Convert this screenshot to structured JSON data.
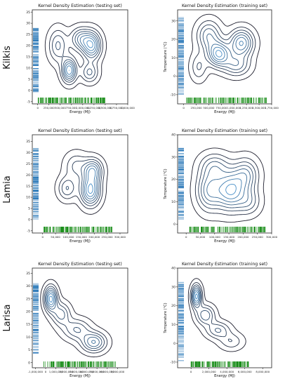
{
  "figure": {
    "rows": [
      {
        "label": "Kilkis"
      },
      {
        "label": "Lamia"
      },
      {
        "label": "Larisa"
      }
    ]
  },
  "chart_data": [
    {
      "type": "kde-contour",
      "row": "Kilkis",
      "title": "Kernel Density Estimation (testing set)",
      "xlabel": "Energy (MJ)",
      "ylabel": "",
      "xlim": [
        -120000,
        2000000
      ],
      "ylim": [
        -6,
        36
      ],
      "xticks": [
        0,
        250000,
        500000,
        750000,
        1000000,
        1250000,
        1500000,
        1750000,
        2000000
      ],
      "xtick_labels": [
        "0",
        "250,000",
        "500,000",
        "750,000",
        "1,000,000",
        "1,250,000",
        "1,500,000",
        "1,750,000",
        "2,000,000"
      ],
      "yticks": [
        -5,
        0,
        5,
        10,
        15,
        20,
        25,
        30,
        35
      ],
      "ytick_labels": [
        "-5",
        "0",
        "5",
        "10",
        "15",
        "20",
        "25",
        "30",
        "35"
      ],
      "rug_x_range": [
        0,
        1500000
      ],
      "rug_y_range": [
        -1,
        28
      ],
      "modes": [
        {
          "x": 700000,
          "y": 9,
          "sx": 110000,
          "sy": 3.6,
          "w": 1.0
        },
        {
          "x": 1200000,
          "y": 20,
          "sx": 140000,
          "sy": 4.2,
          "w": 0.95
        },
        {
          "x": 950000,
          "y": 23,
          "sx": 150000,
          "sy": 3.4,
          "w": 0.6
        },
        {
          "x": 450000,
          "y": 20,
          "sx": 140000,
          "sy": 5.0,
          "w": 0.5
        },
        {
          "x": 1150000,
          "y": 8,
          "sx": 130000,
          "sy": 3.0,
          "w": 0.5
        }
      ],
      "levels": 8,
      "colors": {
        "contour_low": "#1f1f2e",
        "contour_high": "#4a90c8",
        "rug_x": "#138a13",
        "rug_y": "#2a78b8"
      }
    },
    {
      "type": "kde-contour",
      "row": "Kilkis",
      "title": "Kernel Density Estimation (training set)",
      "xlabel": "Energy (MJ)",
      "ylabel": "Temperature (°C)",
      "xlim": [
        -120000,
        1750000
      ],
      "ylim": [
        -15,
        36
      ],
      "xticks": [
        0,
        250000,
        500000,
        750000,
        1000000,
        1250000,
        1500000,
        1750000
      ],
      "xtick_labels": [
        "0",
        "250,000",
        "500,000",
        "750,000",
        "1,000,000",
        "1,250,000",
        "1,500,000",
        "1,750,000"
      ],
      "yticks": [
        -10,
        0,
        10,
        20,
        30
      ],
      "ytick_labels": [
        "-10",
        "0",
        "10",
        "20",
        "30"
      ],
      "rug_x_range": [
        0,
        1650000
      ],
      "rug_y_range": [
        -10,
        32
      ],
      "modes": [
        {
          "x": 700000,
          "y": 12,
          "sx": 150000,
          "sy": 4.5,
          "w": 1.0
        },
        {
          "x": 1150000,
          "y": 18,
          "sx": 160000,
          "sy": 5.0,
          "w": 0.9
        },
        {
          "x": 500000,
          "y": 22,
          "sx": 160000,
          "sy": 5.5,
          "w": 0.6
        },
        {
          "x": 1050000,
          "y": 6,
          "sx": 180000,
          "sy": 4.0,
          "w": 0.55
        },
        {
          "x": 300000,
          "y": 5,
          "sx": 110000,
          "sy": 5.0,
          "w": 0.35
        }
      ],
      "levels": 8,
      "colors": {
        "contour_low": "#1f1f2e",
        "contour_high": "#4a90c8",
        "rug_x": "#138a13",
        "rug_y": "#2a78b8"
      }
    },
    {
      "type": "kde-contour",
      "row": "Lamia",
      "title": "Kernel Density Estimation (testing set)",
      "xlabel": "Energy (MJ)",
      "ylabel": "",
      "xlim": [
        -40000,
        330000
      ],
      "ylim": [
        -6,
        38
      ],
      "xticks": [
        0,
        50000,
        100000,
        150000,
        200000,
        250000,
        300000
      ],
      "xtick_labels": [
        "0",
        "50,000",
        "100,000",
        "150,000",
        "200,000",
        "250,000",
        "300,000"
      ],
      "yticks": [
        -5,
        0,
        5,
        10,
        15,
        20,
        25,
        30,
        35
      ],
      "ytick_labels": [
        "-5",
        "0",
        "5",
        "10",
        "15",
        "20",
        "25",
        "30",
        "35"
      ],
      "rug_x_range": [
        0,
        270000
      ],
      "rug_y_range": [
        0,
        32
      ],
      "modes": [
        {
          "x": 185000,
          "y": 13,
          "sx": 26000,
          "sy": 4.5,
          "w": 1.0
        },
        {
          "x": 195000,
          "y": 22,
          "sx": 25000,
          "sy": 3.5,
          "w": 0.75
        },
        {
          "x": 95000,
          "y": 14,
          "sx": 24000,
          "sy": 3.5,
          "w": 0.45
        },
        {
          "x": 130000,
          "y": 24,
          "sx": 30000,
          "sy": 4.0,
          "w": 0.35
        }
      ],
      "levels": 8,
      "colors": {
        "contour_low": "#1f1f2e",
        "contour_high": "#4a90c8",
        "rug_x": "#138a13",
        "rug_y": "#2a78b8"
      }
    },
    {
      "type": "kde-contour",
      "row": "Lamia",
      "title": "Kernel Density Estimation (training set)",
      "xlabel": "Energy (MJ)",
      "ylabel": "Temperature (°C)",
      "xlim": [
        -30000,
        300000
      ],
      "ylim": [
        -4,
        40
      ],
      "xticks": [
        0,
        50000,
        100000,
        150000,
        200000,
        250000,
        300000
      ],
      "xtick_labels": [
        "0",
        "50,000",
        "100,000",
        "150,000",
        "200,000",
        "250,000",
        "300,000"
      ],
      "yticks": [
        0,
        10,
        20,
        30,
        40
      ],
      "ytick_labels": [
        "0",
        "10",
        "20",
        "30",
        "40"
      ],
      "rug_x_range": [
        10000,
        280000
      ],
      "rug_y_range": [
        2,
        34
      ],
      "modes": [
        {
          "x": 155000,
          "y": 15,
          "sx": 35000,
          "sy": 6.0,
          "w": 1.0
        },
        {
          "x": 80000,
          "y": 15,
          "sx": 30000,
          "sy": 6.0,
          "w": 0.7
        },
        {
          "x": 210000,
          "y": 22,
          "sx": 30000,
          "sy": 5.0,
          "w": 0.6
        },
        {
          "x": 100000,
          "y": 26,
          "sx": 35000,
          "sy": 4.0,
          "w": 0.45
        },
        {
          "x": 220000,
          "y": 10,
          "sx": 28000,
          "sy": 4.0,
          "w": 0.4
        }
      ],
      "levels": 8,
      "colors": {
        "contour_low": "#1f1f2e",
        "contour_high": "#4a90c8",
        "rug_x": "#138a13",
        "rug_y": "#2a78b8"
      }
    },
    {
      "type": "kde-contour",
      "row": "Larisa",
      "title": "Kernel Density Estimation (testing set)",
      "xlabel": "Energy (MJ)",
      "ylabel": "",
      "xlim": [
        -1300000,
        8000000
      ],
      "ylim": [
        -2,
        37
      ],
      "xticks": [
        -1000000,
        0,
        1000000,
        2000000,
        3000000,
        4000000,
        5000000,
        6000000,
        7000000
      ],
      "xtick_labels": [
        "-1,000,000",
        "0",
        "1,000,000",
        "2,000,000",
        "3,000,000",
        "4,000,000",
        "5,000,000",
        "6,000,000",
        "7,000,000"
      ],
      "yticks": [
        0,
        5,
        10,
        15,
        20,
        25,
        30,
        35
      ],
      "ytick_labels": [
        "0",
        "5",
        "10",
        "15",
        "20",
        "25",
        "30",
        "35"
      ],
      "rug_x_range": [
        -200000,
        6800000
      ],
      "rug_y_range": [
        3,
        31
      ],
      "modes": [
        {
          "x": 500000,
          "y": 25,
          "sx": 420000,
          "sy": 3.2,
          "w": 1.0
        },
        {
          "x": 1500000,
          "y": 19,
          "sx": 600000,
          "sy": 3.0,
          "w": 0.5
        },
        {
          "x": 3000000,
          "y": 13,
          "sx": 900000,
          "sy": 2.8,
          "w": 0.45
        },
        {
          "x": 4700000,
          "y": 8,
          "sx": 800000,
          "sy": 2.6,
          "w": 0.7
        }
      ],
      "levels": 8,
      "colors": {
        "contour_low": "#1f1f2e",
        "contour_high": "#4a90c8",
        "rug_x": "#138a13",
        "rug_y": "#2a78b8"
      }
    },
    {
      "type": "kde-contour",
      "row": "Larisa",
      "title": "Kernel Density Estimation (training set)",
      "xlabel": "Energy (MJ)",
      "ylabel": "Temperature (°C)",
      "xlim": [
        -1500000,
        9000000
      ],
      "ylim": [
        -13,
        40
      ],
      "xticks": [
        0,
        2000000,
        4000000,
        6000000,
        8000000
      ],
      "xtick_labels": [
        "0",
        "2,000,000",
        "4,000,000",
        "6,000,000",
        "8,000,000"
      ],
      "yticks": [
        -10,
        0,
        10,
        20,
        30,
        40
      ],
      "ytick_labels": [
        "-10",
        "0",
        "10",
        "20",
        "30",
        "40"
      ],
      "rug_x_range": [
        0,
        6500000
      ],
      "rug_y_range": [
        -10,
        33
      ],
      "modes": [
        {
          "x": 600000,
          "y": 25,
          "sx": 380000,
          "sy": 4.0,
          "w": 1.0
        },
        {
          "x": 1600000,
          "y": 15,
          "sx": 700000,
          "sy": 3.5,
          "w": 0.55
        },
        {
          "x": 3000000,
          "y": 7,
          "sx": 900000,
          "sy": 3.0,
          "w": 0.45
        },
        {
          "x": 4500000,
          "y": 1,
          "sx": 900000,
          "sy": 3.0,
          "w": 0.3
        }
      ],
      "levels": 8,
      "colors": {
        "contour_low": "#1f1f2e",
        "contour_high": "#4a90c8",
        "rug_x": "#138a13",
        "rug_y": "#2a78b8"
      }
    }
  ]
}
